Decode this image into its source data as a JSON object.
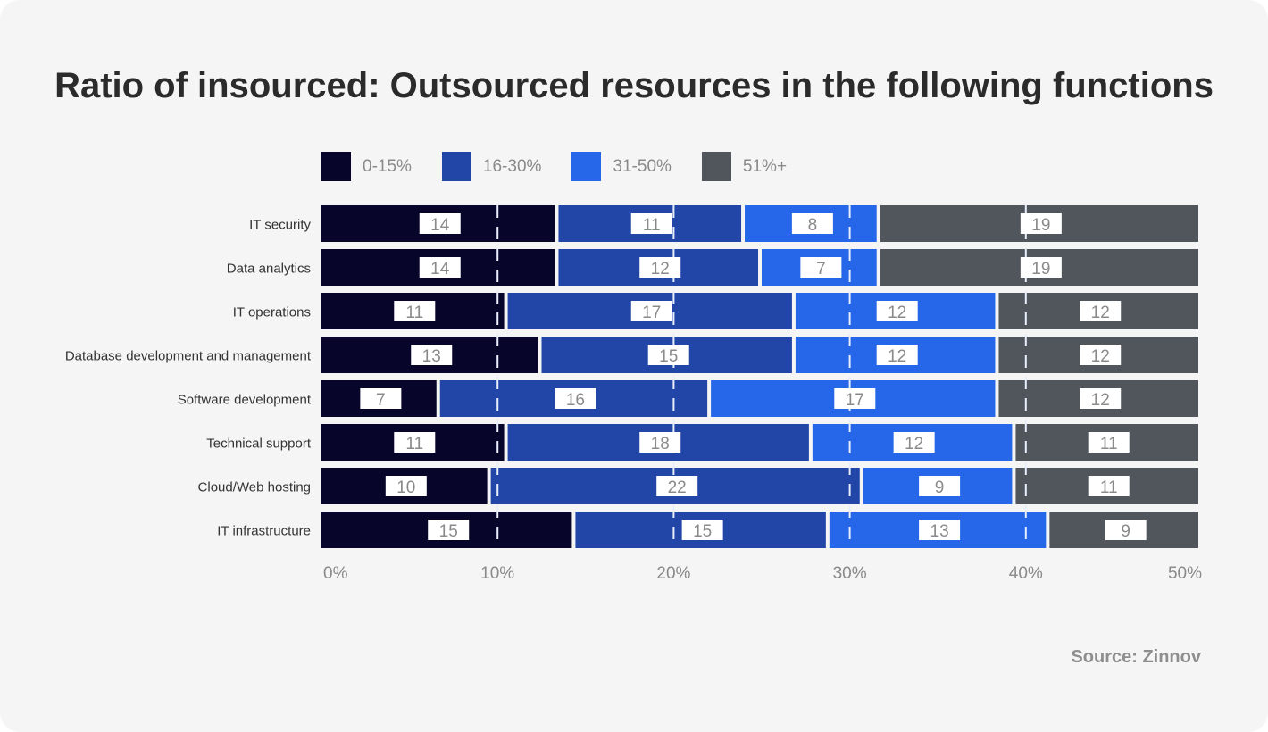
{
  "chart_data": {
    "type": "bar",
    "orientation": "horizontal",
    "stacked": true,
    "title": "Ratio of insourced: Outsourced resources in the following functions",
    "categories": [
      "IT security",
      "Data analytics",
      "IT operations",
      "Database development and management",
      "Software development",
      "Technical support",
      "Cloud/Web hosting",
      "IT infrastructure"
    ],
    "series": [
      {
        "name": "0-15%",
        "color": "#07052a",
        "values": [
          14,
          14,
          11,
          13,
          7,
          11,
          10,
          15
        ]
      },
      {
        "name": "16-30%",
        "color": "#2146a8",
        "values": [
          11,
          12,
          17,
          15,
          16,
          18,
          22,
          15
        ]
      },
      {
        "name": "31-50%",
        "color": "#2567e8",
        "values": [
          8,
          7,
          12,
          12,
          17,
          12,
          9,
          13
        ]
      },
      {
        "name": "51%+",
        "color": "#50565c",
        "values": [
          19,
          19,
          12,
          12,
          12,
          11,
          11,
          9
        ]
      }
    ],
    "xticks": [
      "0%",
      "10%",
      "20%",
      "30%",
      "40%",
      "50%"
    ],
    "xlim": [
      0,
      50
    ],
    "grid": "vertical dashed",
    "legend": "top"
  },
  "source": "Source:  Zinnov"
}
